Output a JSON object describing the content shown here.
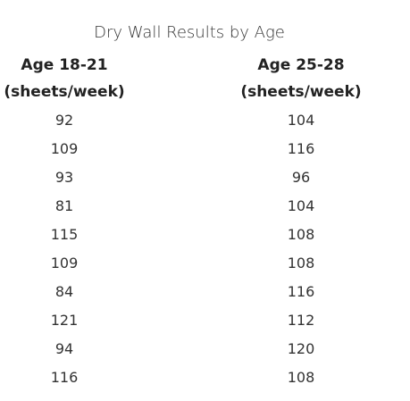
{
  "table": {
    "caption": "Dry Wall Results by Age",
    "columns": [
      {
        "header_line1": "Age 18-21",
        "header_line2": "(sheets/week)",
        "values": [
          92,
          109,
          93,
          81,
          115,
          109,
          84,
          121,
          94,
          116
        ]
      },
      {
        "header_line1": "Age 25-28",
        "header_line2": "(sheets/week)",
        "values": [
          104,
          116,
          96,
          104,
          108,
          108,
          116,
          112,
          120,
          108
        ]
      }
    ]
  }
}
